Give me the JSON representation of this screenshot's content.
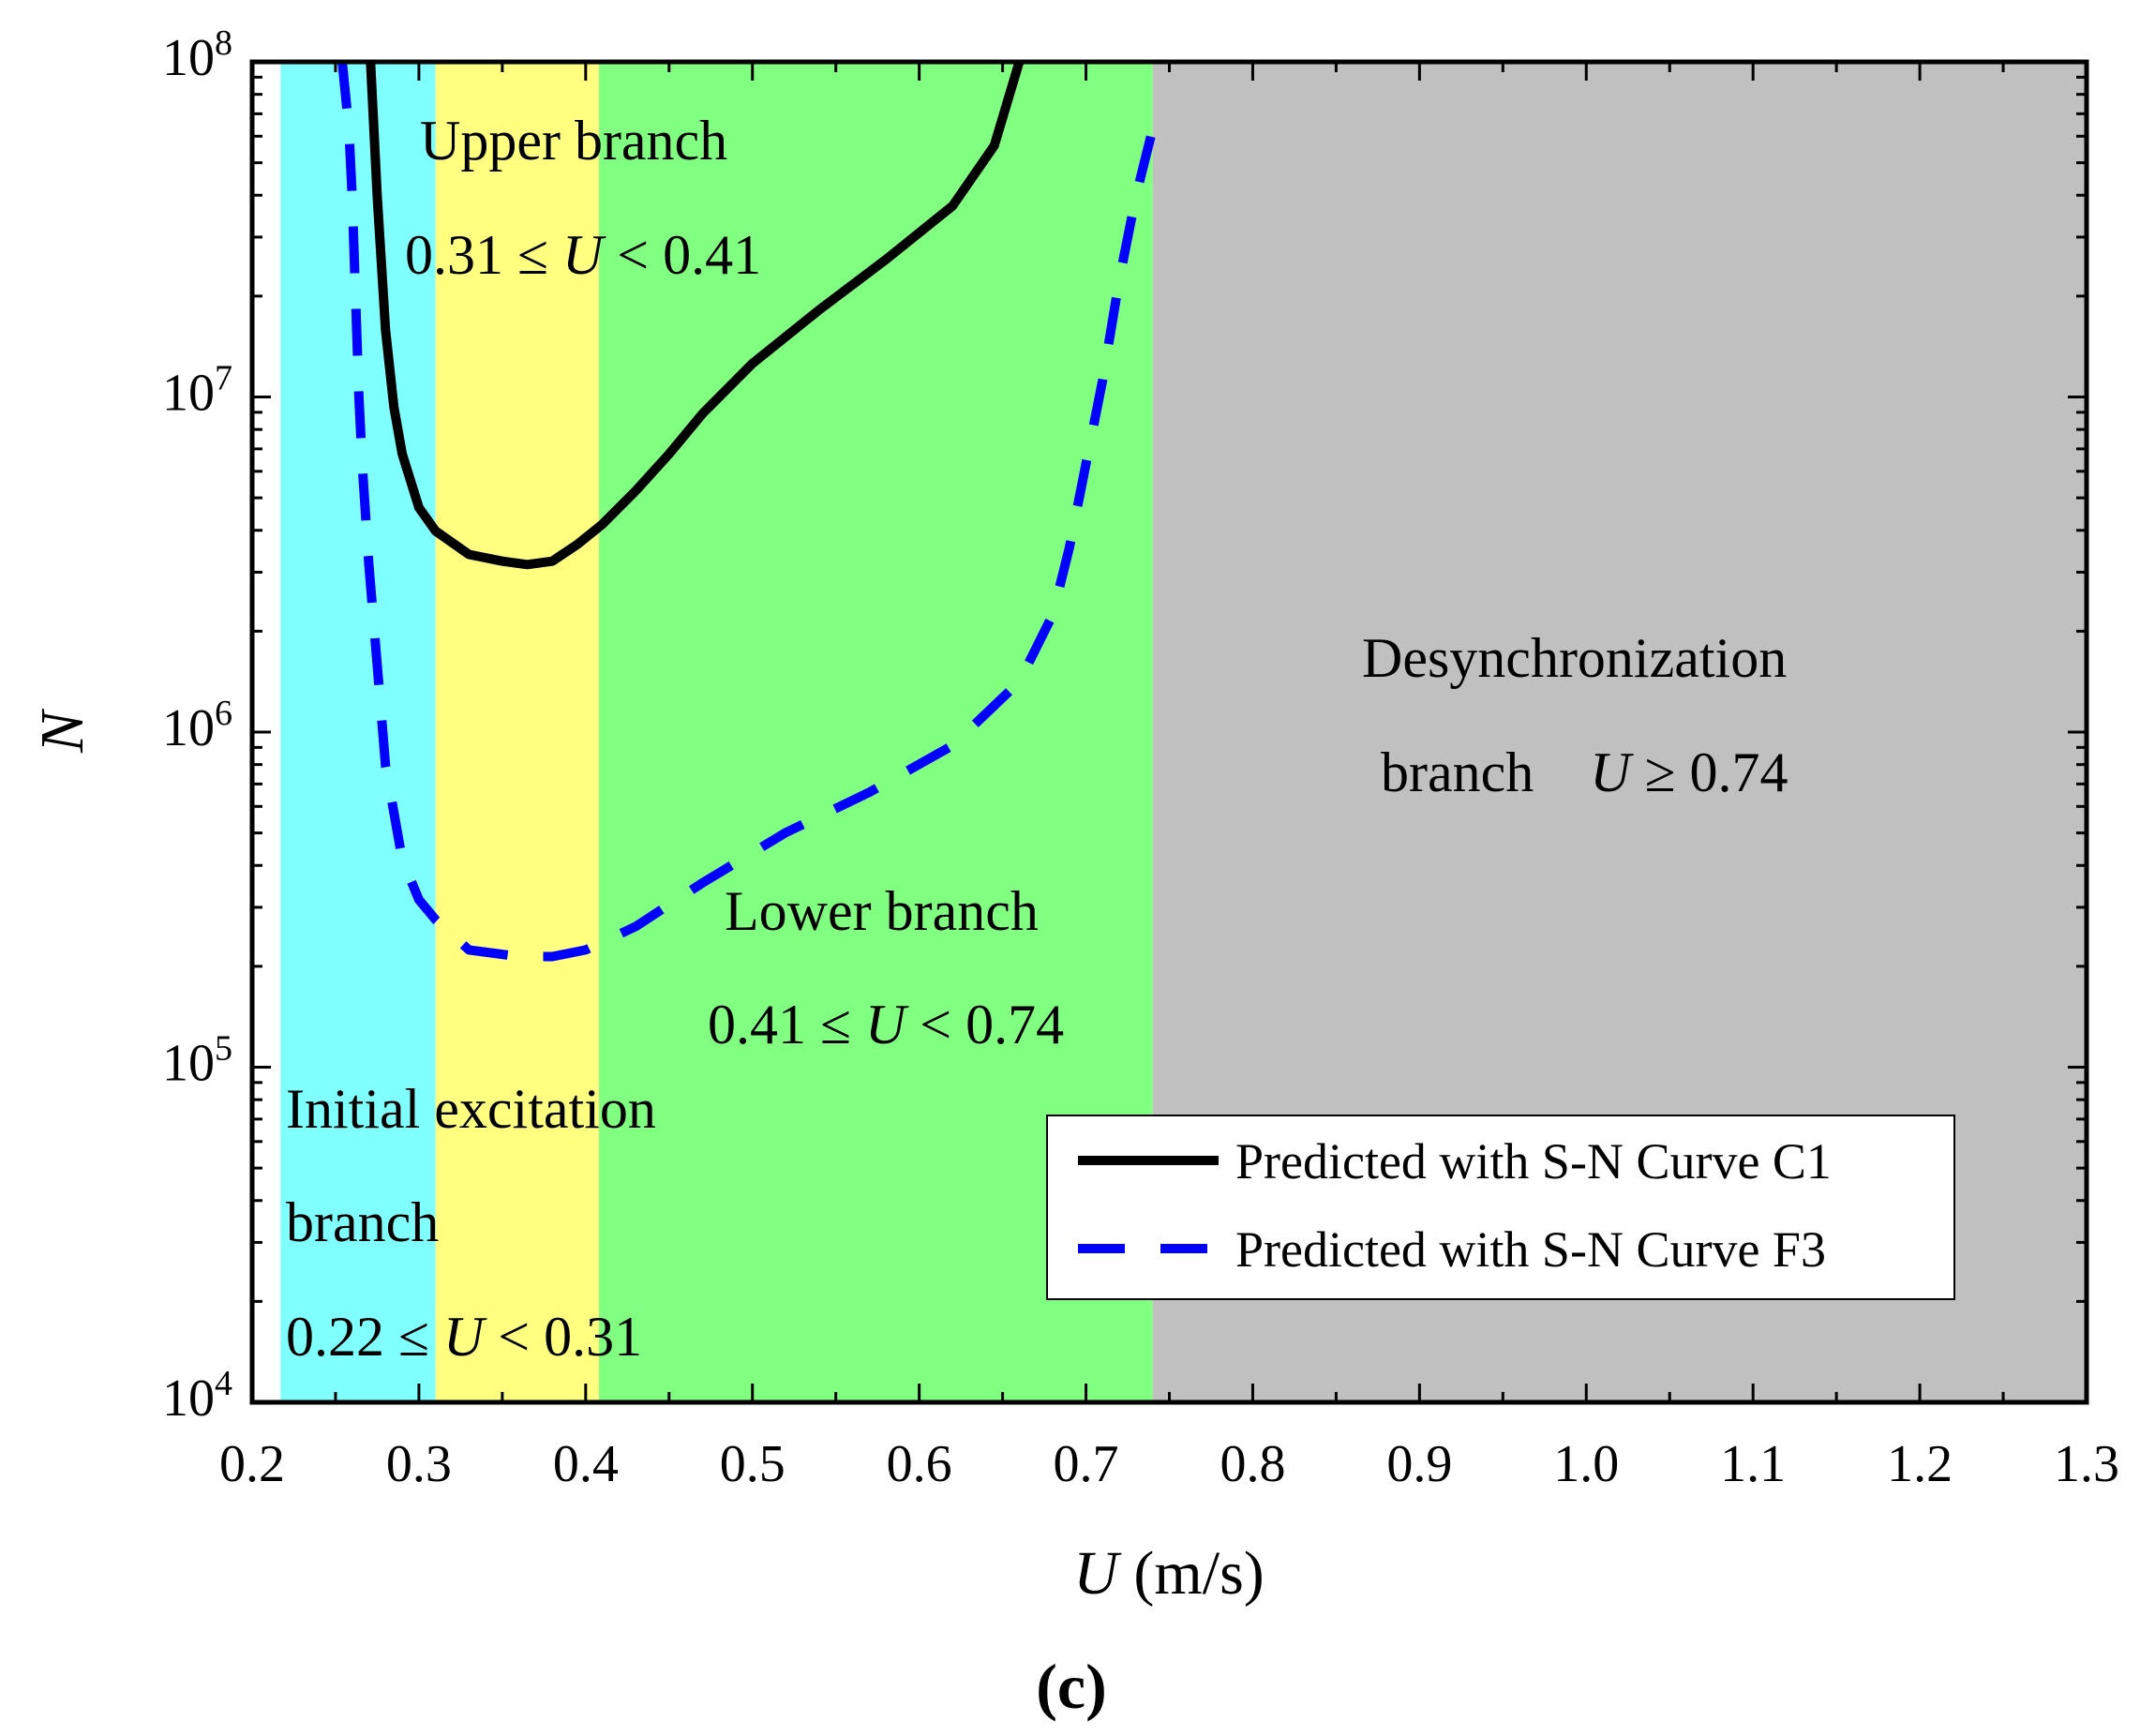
{
  "chart_data": {
    "type": "line",
    "title": "",
    "xlabel": "U (m/s)",
    "ylabel": "N",
    "xlim": [
      0.2,
      1.3
    ],
    "ylim_log10": [
      4,
      8
    ],
    "yscale": "log",
    "grid": false,
    "legend_position": "bottom-right",
    "caption": "(c)",
    "x_ticks": [
      "0.2",
      "0.3",
      "0.4",
      "0.5",
      "0.6",
      "0.7",
      "0.8",
      "0.9",
      "1.0",
      "1.1",
      "1.2",
      "1.3"
    ],
    "y_ticks": [
      {
        "base": "10",
        "exp": "4",
        "value": 4
      },
      {
        "base": "10",
        "exp": "5",
        "value": 5
      },
      {
        "base": "10",
        "exp": "6",
        "value": 6
      },
      {
        "base": "10",
        "exp": "7",
        "value": 7
      },
      {
        "base": "10",
        "exp": "8",
        "value": 8
      }
    ],
    "regions": [
      {
        "name": "initial",
        "from": 0.217,
        "to": 0.31,
        "color": "#80ffff"
      },
      {
        "name": "upper",
        "from": 0.31,
        "to": 0.408,
        "color": "#ffff80"
      },
      {
        "name": "lower",
        "from": 0.408,
        "to": 0.74,
        "color": "#80ff80"
      },
      {
        "name": "desync",
        "from": 0.74,
        "to": 1.3,
        "color": "#c0c0c0"
      }
    ],
    "annotations": {
      "upper_title": "Upper branch",
      "upper_a": "0.31 ≤ ",
      "upper_var": "U",
      "upper_b": " < 0.41",
      "lower_title": "Lower branch",
      "lower_a": "0.41 ≤ ",
      "lower_var": "U",
      "lower_b": " < 0.74",
      "initial_title1": "Initial excitation",
      "initial_title2": "branch",
      "initial_a": "0.22 ≤ ",
      "initial_var": "U",
      "initial_b": " < 0.31",
      "desync_title": "Desynchronization",
      "desync_a": "branch    ",
      "desync_var": "U",
      "desync_b": " ≥ 0.74"
    },
    "series": [
      {
        "name": "Predicted with S-N Curve C1",
        "color": "#000000",
        "dash": "solid",
        "points": [
          [
            0.271,
            8.0
          ],
          [
            0.275,
            7.6
          ],
          [
            0.28,
            7.2
          ],
          [
            0.285,
            6.97
          ],
          [
            0.29,
            6.83
          ],
          [
            0.3,
            6.67
          ],
          [
            0.31,
            6.6
          ],
          [
            0.33,
            6.53
          ],
          [
            0.35,
            6.51
          ],
          [
            0.365,
            6.5
          ],
          [
            0.38,
            6.51
          ],
          [
            0.395,
            6.56
          ],
          [
            0.41,
            6.62
          ],
          [
            0.43,
            6.72
          ],
          [
            0.45,
            6.83
          ],
          [
            0.47,
            6.95
          ],
          [
            0.5,
            7.1
          ],
          [
            0.54,
            7.26
          ],
          [
            0.58,
            7.41
          ],
          [
            0.62,
            7.57
          ],
          [
            0.645,
            7.75
          ],
          [
            0.66,
            8.0
          ]
        ]
      },
      {
        "name": "Predicted with S-N Curve F3",
        "color": "#0000ff",
        "dash": "dashed",
        "points": [
          [
            0.254,
            8.0
          ],
          [
            0.258,
            7.8
          ],
          [
            0.26,
            7.6
          ],
          [
            0.262,
            7.3
          ],
          [
            0.264,
            7.0
          ],
          [
            0.266,
            6.8
          ],
          [
            0.27,
            6.5
          ],
          [
            0.275,
            6.2
          ],
          [
            0.28,
            5.9
          ],
          [
            0.29,
            5.62
          ],
          [
            0.3,
            5.5
          ],
          [
            0.31,
            5.44
          ],
          [
            0.33,
            5.35
          ],
          [
            0.36,
            5.33
          ],
          [
            0.38,
            5.33
          ],
          [
            0.4,
            5.35
          ],
          [
            0.43,
            5.42
          ],
          [
            0.47,
            5.55
          ],
          [
            0.52,
            5.7
          ],
          [
            0.57,
            5.82
          ],
          [
            0.62,
            5.96
          ],
          [
            0.66,
            6.15
          ],
          [
            0.68,
            6.35
          ],
          [
            0.69,
            6.55
          ],
          [
            0.7,
            6.8
          ],
          [
            0.71,
            7.05
          ],
          [
            0.72,
            7.35
          ],
          [
            0.73,
            7.6
          ],
          [
            0.74,
            7.8
          ]
        ]
      }
    ]
  }
}
